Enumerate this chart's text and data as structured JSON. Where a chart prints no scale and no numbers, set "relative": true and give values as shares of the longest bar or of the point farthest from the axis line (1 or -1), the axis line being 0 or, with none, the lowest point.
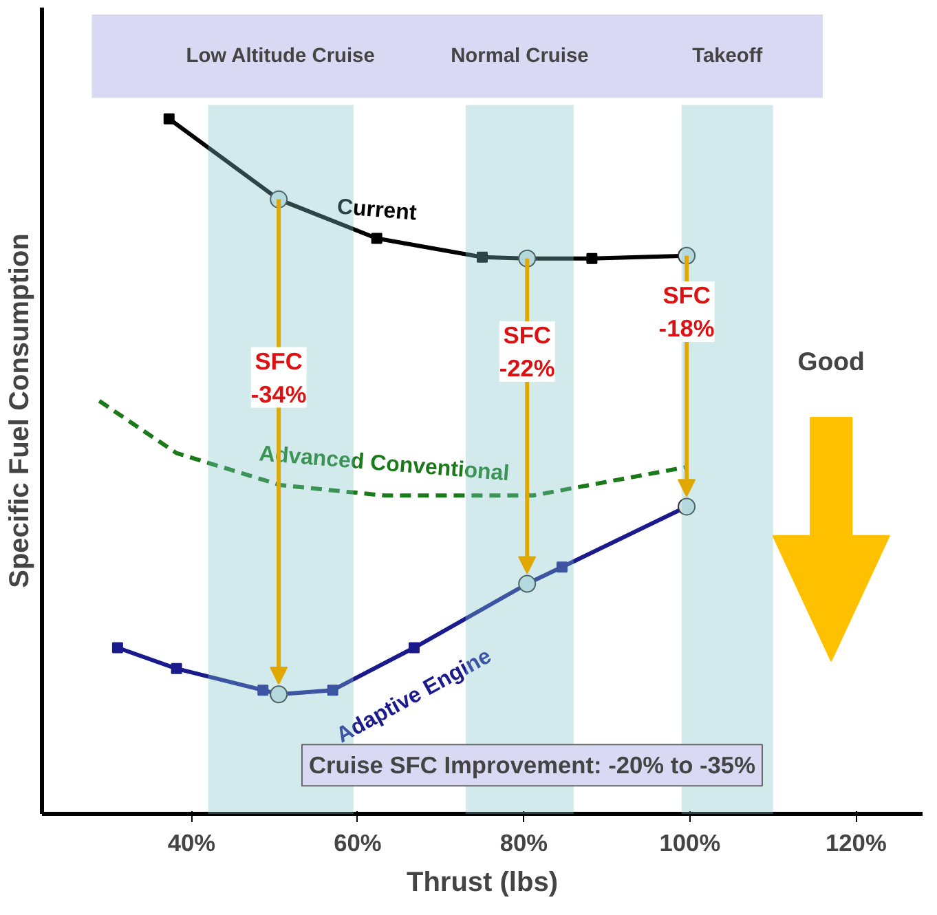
{
  "chart_data": {
    "type": "line",
    "relative": true,
    "xlabel": "Thrust (lbs)",
    "ylabel": "Specific Fuel Consumption",
    "xlim": [
      22,
      128
    ],
    "xticks": [
      {
        "value": 40,
        "label": "40%"
      },
      {
        "value": 60,
        "label": "60%"
      },
      {
        "value": 80,
        "label": "80%"
      },
      {
        "value": 100,
        "label": "100%"
      },
      {
        "value": 120,
        "label": "120%"
      }
    ],
    "grid": false,
    "marker": "square",
    "series": [
      {
        "name": "Current",
        "color": "#000000",
        "line_style": "solid",
        "x": [
          37.3,
          50.5,
          62.3,
          75,
          80.4,
          88.2,
          99.6
        ],
        "values": [
          1,
          0.884,
          0.828,
          0.801,
          0.799,
          0.799,
          0.803
        ]
      },
      {
        "name": "Advanced Conventional",
        "color": "#1a7a1a",
        "line_style": "dashed",
        "marker": "none",
        "x": [
          28.9,
          38.2,
          50.7,
          63.2,
          81.1,
          99.6
        ],
        "values": [
          0.594,
          0.519,
          0.473,
          0.458,
          0.458,
          0.499
        ]
      },
      {
        "name": "Adaptive Engine",
        "color": "#1a1a8c",
        "line_style": "solid",
        "x": [
          31.1,
          38.2,
          48.6,
          50.5,
          57,
          66.8,
          80.4,
          84.6,
          99.6
        ],
        "values": [
          0.239,
          0.209,
          0.178,
          0.172,
          0.178,
          0.239,
          0.331,
          0.355,
          0.442
        ]
      }
    ],
    "bands": [
      {
        "axis": "x",
        "from": 42,
        "to": 59.5,
        "label": "Low Altitude Cruise",
        "color": "#7fc4c8"
      },
      {
        "axis": "x",
        "from": 73,
        "to": 86,
        "label": "Normal Cruise",
        "color": "#7fc4c8"
      },
      {
        "axis": "x",
        "from": 99,
        "to": 110,
        "label": "Takeoff",
        "color": "#7fc4c8"
      }
    ],
    "annotations": [
      "SFC\n-34%",
      "SFC\n-22%",
      "SFC\n-18%",
      "Good",
      "Cruise SFC Improvement: -20% to -35%"
    ]
  }
}
